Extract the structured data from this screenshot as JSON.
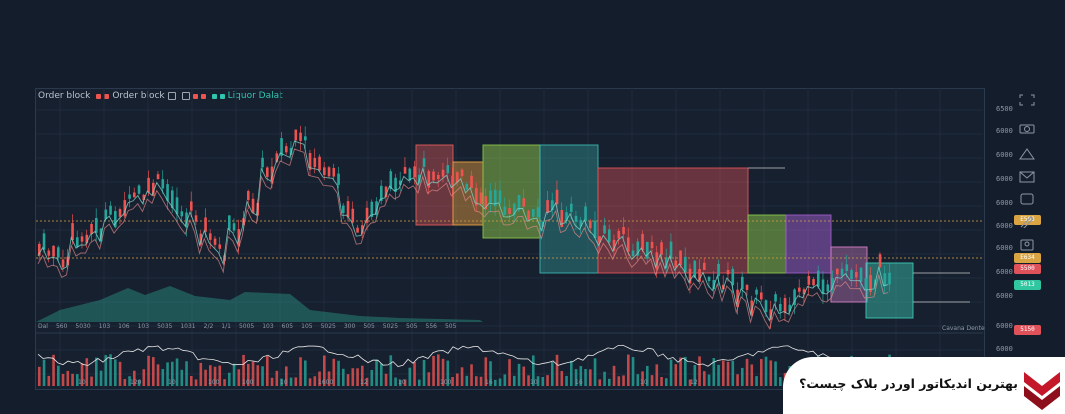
{
  "header": {
    "title": "Order block",
    "tag1": "Order block",
    "tag2": "Liquor Dalat"
  },
  "price_axis": [
    "6500",
    "6000",
    "6000",
    "6000",
    "6000",
    "6000",
    "6000",
    "6000",
    "6000",
    "6000",
    "6000"
  ],
  "tags": [
    {
      "label": "E503",
      "color": "#d9a441"
    },
    {
      "label": "E634",
      "color": "#d9a441"
    },
    {
      "label": "5500",
      "color": "#e0525a"
    },
    {
      "label": "5013",
      "color": "#2fc6a0"
    },
    {
      "label": "5150",
      "color": "#e0525a"
    }
  ],
  "watermark": "Cavana Dente",
  "time_labels": [
    "Dal",
    "560",
    "5030",
    "103",
    "106",
    "103",
    "5035",
    "1031",
    "2/2",
    "1/1",
    "5005",
    "103",
    "605",
    "105",
    "5025",
    "300",
    "505",
    "5025",
    "505",
    "556",
    "505"
  ],
  "bottom_axis": [
    "10",
    "120",
    "10",
    "100",
    "100",
    "10",
    "1600",
    "12",
    "10",
    "100",
    "16",
    "10",
    "16",
    "10",
    "12"
  ],
  "banner": {
    "text": "بهترین اندیکاتور اوردر بلاک چیست؟"
  },
  "colors": {
    "bull": "#26a69a",
    "bear": "#ef5350",
    "bg": "#141d2b"
  },
  "tools": [
    "expand-icon",
    "camera-icon",
    "alert-icon",
    "message-icon",
    "note-icon",
    "draw-icon",
    "user-icon"
  ]
}
